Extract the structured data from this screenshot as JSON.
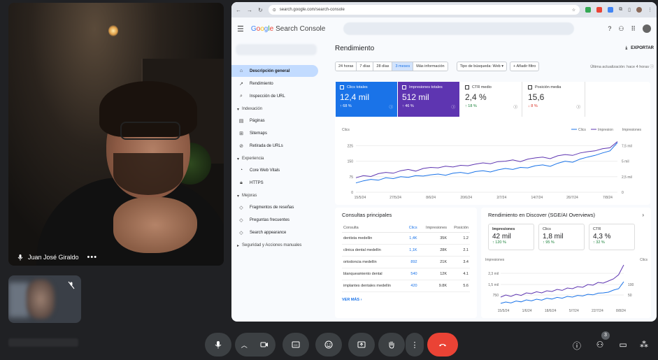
{
  "meet": {
    "participant_name": "Juan José Giraldo",
    "more_label": "•••",
    "people_count": "3"
  },
  "browser": {
    "url": "search.google.com/search-console"
  },
  "app": {
    "brand_google": "Google",
    "brand_product": "Search Console",
    "sidebar": {
      "items": [
        {
          "label": "Descripción general",
          "icon": "home-icon"
        },
        {
          "label": "Rendimiento",
          "icon": "trend-icon"
        },
        {
          "label": "Inspección de URL",
          "icon": "search-icon"
        }
      ],
      "section_indexing": "Indexación",
      "indexing_items": [
        {
          "label": "Páginas",
          "icon": "pages-icon"
        },
        {
          "label": "Sitemaps",
          "icon": "sitemap-icon"
        },
        {
          "label": "Retirada de URLs",
          "icon": "eye-off-icon"
        }
      ],
      "section_experience": "Experiencia",
      "experience_items": [
        {
          "label": "Core Web Vitals",
          "icon": "speed-icon"
        },
        {
          "label": "HTTPS",
          "icon": "lock-icon"
        }
      ],
      "section_improvements": "Mejoras",
      "improvement_items": [
        {
          "label": "Fragmentos de reseñas",
          "icon": "review-icon"
        },
        {
          "label": "Preguntas frecuentes",
          "icon": "faq-icon"
        },
        {
          "label": "Search appearance",
          "icon": "diamond-icon"
        }
      ],
      "section_security": "Seguridad y Acciones manuales"
    },
    "page_title": "Rendimiento",
    "export_label": "EXPORTAR",
    "range_chips": [
      "24 horas",
      "7 días",
      "28 días",
      "3 meses",
      "Más información"
    ],
    "selected_range": "3 meses",
    "search_type": "Tipo de búsqueda: Web",
    "add_filter": "Añadir filtro",
    "last_update": "Última actualización: hace 4 horas",
    "metrics": [
      {
        "label": "Clics totales",
        "value": "12,4 mil",
        "delta": "68 %",
        "dir": "up"
      },
      {
        "label": "Impresiones totales",
        "value": "512 mil",
        "delta": "46 %",
        "dir": "up"
      },
      {
        "label": "CTR medio",
        "value": "2,4 %",
        "delta": "18 %",
        "dir": "up"
      },
      {
        "label": "Posición media",
        "value": "15,6",
        "delta": "8 %",
        "dir": "down"
      }
    ],
    "queries_title": "Consultas principales",
    "queries_headers": [
      "Consulta",
      "Clics",
      "Impresiones",
      "Posición"
    ],
    "queries": [
      [
        "dentista medellin",
        "1,4K",
        "35K",
        "1.2"
      ],
      [
        "clinica dental medellin",
        "1,1K",
        "28K",
        "2.1"
      ],
      [
        "ortodoncia medellin",
        "892",
        "21K",
        "3.4"
      ],
      [
        "blanqueamiento dental",
        "540",
        "12K",
        "4.1"
      ],
      [
        "implantes dentales medellin",
        "420",
        "9.8K",
        "5.6"
      ]
    ],
    "see_more": "VER MÁS",
    "discover_title": "Rendimiento en Discover (SGE/AI Overviews)",
    "discover_metrics": [
      {
        "label": "Impresiones",
        "value": "42 mil",
        "delta": "120 %"
      },
      {
        "label": "Clics",
        "value": "1,8 mil",
        "delta": "95 %"
      },
      {
        "label": "CTR",
        "value": "4,3 %",
        "delta": "32 %"
      }
    ]
  },
  "chart_data": [
    {
      "type": "line",
      "title": "",
      "ylabel_left": "Clics",
      "ylabel_right": "Impresiones",
      "legend": [
        "Clics",
        "Impresion"
      ],
      "x_ticks": [
        "15/5/24",
        "27/5/24",
        "8/6/24",
        "20/6/24",
        "2/7/24",
        "14/7/24",
        "26/7/24",
        "7/8/24"
      ],
      "y_left_ticks": [
        0,
        75,
        150,
        225
      ],
      "y_right_ticks": [
        "0",
        "2,5 mil",
        "5 mil",
        "7,5 mil"
      ],
      "ylim": [
        0,
        250
      ],
      "series": [
        {
          "name": "Clics",
          "color": "#1a73e8",
          "values": [
            45,
            55,
            62,
            58,
            70,
            66,
            75,
            72,
            80,
            78,
            84,
            88,
            82,
            92,
            96,
            90,
            100,
            104,
            98,
            108,
            115,
            110,
            120,
            118,
            128,
            132,
            125,
            140,
            150,
            145,
            160,
            170,
            178,
            190,
            200,
            240
          ]
        },
        {
          "name": "Impresion",
          "color": "#5e35b1",
          "values": [
            70,
            80,
            76,
            90,
            96,
            92,
            104,
            110,
            102,
            115,
            120,
            118,
            126,
            122,
            130,
            128,
            136,
            142,
            138,
            148,
            150,
            156,
            148,
            160,
            166,
            170,
            162,
            176,
            182,
            178,
            190,
            196,
            200,
            210,
            215,
            245
          ]
        }
      ]
    },
    {
      "type": "line",
      "title": "",
      "ylabel_left": "Impresiones",
      "ylabel_right": "Clics",
      "x_ticks": [
        "15/5/24",
        "1/6/24",
        "18/6/24",
        "5/7/24",
        "22/7/24",
        "8/8/24"
      ],
      "y_left_ticks": [
        "750",
        "1,5 mil",
        "2,3 mil"
      ],
      "y_right_ticks": [
        "50",
        "100"
      ],
      "ylim": [
        0,
        3000
      ],
      "series": [
        {
          "name": "Impresiones",
          "color": "#5e35b1",
          "values": [
            600,
            750,
            650,
            800,
            720,
            900,
            850,
            980,
            900,
            1050,
            1000,
            1150,
            1080,
            1250,
            1200,
            1350,
            1300,
            1500,
            1450,
            1650,
            1600,
            1750,
            1900,
            2200,
            2900
          ]
        },
        {
          "name": "Clics",
          "color": "#1a73e8",
          "values": [
            150,
            250,
            180,
            320,
            260,
            400,
            330,
            450,
            380,
            520,
            460,
            580,
            520,
            650,
            600,
            720,
            680,
            800,
            760,
            880,
            900,
            950,
            1100,
            1200,
            1700
          ]
        }
      ]
    }
  ]
}
